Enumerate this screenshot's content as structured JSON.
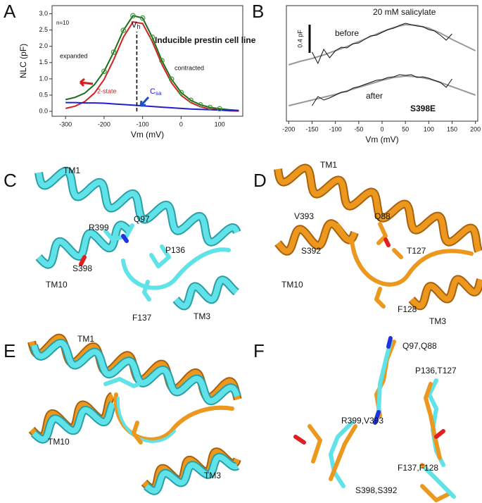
{
  "letters": [
    "A",
    "B",
    "C",
    "D",
    "E",
    "F"
  ],
  "chart_data": [
    {
      "type": "line",
      "title": "Inducible prestin cell line",
      "xlabel": "Vm (mV)",
      "ylabel": "NLC (pF)",
      "xlim": [
        -335,
        160
      ],
      "xticks": [
        -300,
        -200,
        -100,
        0,
        100
      ],
      "ylim": [
        -0.15,
        3.25
      ],
      "yticks": [
        {
          "value": 0,
          "label": "0.0"
        },
        {
          "value": 0.5,
          "label": "0.5"
        },
        {
          "value": 1,
          "label": "1.0"
        },
        {
          "value": 1.5,
          "label": "1.5"
        },
        {
          "value": 2,
          "label": "2.0"
        },
        {
          "value": 2.5,
          "label": "2.5"
        },
        {
          "value": 3,
          "label": "3.0"
        }
      ],
      "x": [
        -300,
        -275,
        -250,
        -225,
        -200,
        -175,
        -150,
        -125,
        -100,
        -75,
        -50,
        -25,
        0,
        25,
        50,
        75,
        100,
        125,
        150
      ],
      "series": [
        {
          "color": "#1d6b1d",
          "values": [
            0.36,
            0.43,
            0.56,
            0.82,
            1.23,
            1.82,
            2.49,
            2.94,
            2.87,
            2.28,
            1.56,
            0.99,
            0.58,
            0.34,
            0.2,
            0.12,
            0.08,
            0.05,
            0.03
          ]
        },
        {
          "color": "#d42020",
          "values": [
            0.09,
            0.16,
            0.3,
            0.56,
            0.98,
            1.59,
            2.28,
            2.75,
            2.7,
            2.15,
            1.45,
            0.88,
            0.49,
            0.27,
            0.14,
            0.07,
            0.04,
            0.02,
            0.01
          ]
        },
        {
          "color": "#2020d0",
          "values": [
            0.27,
            0.27,
            0.26,
            0.26,
            0.25,
            0.23,
            0.21,
            0.19,
            0.17,
            0.15,
            0.13,
            0.11,
            0.09,
            0.07,
            0.06,
            0.05,
            0.04,
            0.03,
            0.02
          ]
        },
        {
          "color": "#3a9a3a",
          "marker": "circle",
          "x": [
            -200,
            -175,
            -150,
            -125,
            -100,
            -75,
            -50,
            -25,
            0,
            25,
            50,
            75,
            100
          ],
          "values": [
            1.23,
            1.82,
            2.49,
            2.94,
            2.87,
            2.28,
            1.56,
            0.99,
            0.58,
            0.34,
            0.2,
            0.12,
            0.08
          ]
        }
      ],
      "reference_line": {
        "x": -115,
        "label": "V",
        "sub": "h"
      },
      "csa_label": {
        "main": "C",
        "sub": "sa"
      },
      "annotations": [
        "n=10",
        "expanded",
        "contracted",
        "2-state"
      ]
    },
    {
      "type": "line",
      "xlabel": "Vm (mV)",
      "xlim": [
        -205,
        205
      ],
      "xticks": [
        -200,
        -150,
        -100,
        -50,
        0,
        50,
        100,
        150,
        200
      ],
      "scale_bar": {
        "value": 0.4,
        "label": "0.4 pF"
      },
      "annotations": [
        "20 mM salicylate",
        "before",
        "after",
        "S398E"
      ],
      "series": [
        {
          "color": "#999999",
          "x": [
            -200,
            -175,
            -150,
            -125,
            -100,
            -75,
            -50,
            -25,
            0,
            25,
            50,
            75,
            100,
            125,
            150,
            175,
            200
          ],
          "values": [
            0,
            0.05,
            0.09,
            0.14,
            0.2,
            0.26,
            0.33,
            0.4,
            0.47,
            0.53,
            0.57,
            0.56,
            0.52,
            0.45,
            0.36,
            0.28,
            0.2
          ]
        },
        {
          "color": "#111111",
          "x": [
            -150,
            -137.5,
            -125,
            -112.5,
            -100,
            -87.5,
            -75,
            -62.5,
            -50,
            -37.5,
            -25,
            -12.5,
            0,
            12.5,
            25,
            37.5,
            50,
            62.5,
            75,
            87.5,
            100,
            112.5,
            125,
            137.5,
            150
          ],
          "values": [
            0.18,
            0.02,
            0.22,
            0.1,
            0.2,
            0.25,
            0.24,
            0.3,
            0.31,
            0.36,
            0.41,
            0.42,
            0.46,
            0.5,
            0.52,
            0.56,
            0.59,
            0.57,
            0.55,
            0.54,
            0.5,
            0.48,
            0.42,
            0.35,
            0.44
          ]
        },
        {
          "color": "#999999",
          "x": [
            -200,
            -175,
            -150,
            -125,
            -100,
            -75,
            -50,
            -25,
            0,
            25,
            50,
            75,
            100,
            125,
            150,
            175,
            200
          ],
          "values": [
            0,
            0.04,
            0.08,
            0.12,
            0.16,
            0.21,
            0.26,
            0.31,
            0.36,
            0.4,
            0.42,
            0.41,
            0.38,
            0.33,
            0.27,
            0.21,
            0.15
          ]
        },
        {
          "color": "#111111",
          "x": [
            -150,
            -137.5,
            -125,
            -112.5,
            -100,
            -87.5,
            -75,
            -62.5,
            -50,
            -37.5,
            -25,
            -12.5,
            0,
            12.5,
            25,
            37.5,
            50,
            62.5,
            75,
            87.5,
            100,
            112.5,
            125,
            137.5,
            150
          ],
          "values": [
            0,
            0.13,
            0.08,
            0.11,
            0.15,
            0.19,
            0.2,
            0.25,
            0.27,
            0.3,
            0.33,
            0.36,
            0.37,
            0.4,
            0.41,
            0.44,
            0.43,
            0.44,
            0.4,
            0.41,
            0.39,
            0.36,
            0.33,
            0.26,
            0.38
          ]
        }
      ]
    }
  ],
  "panels": [
    {
      "labels": [
        "TM1",
        "Q97",
        "R399",
        "P136",
        "S398",
        "TM10",
        "F137",
        "TM3"
      ]
    },
    {
      "labels": [
        "TM1",
        "V393",
        "Q88",
        "S392",
        "T127",
        "TM10",
        "F128",
        "TM3"
      ]
    },
    {
      "labels": [
        "TM1",
        "TM10",
        "TM3"
      ]
    },
    {
      "labels": [
        "Q97,Q88",
        "P136,T127",
        "R399,V393",
        "F137,F128",
        "S398,S392"
      ]
    }
  ]
}
